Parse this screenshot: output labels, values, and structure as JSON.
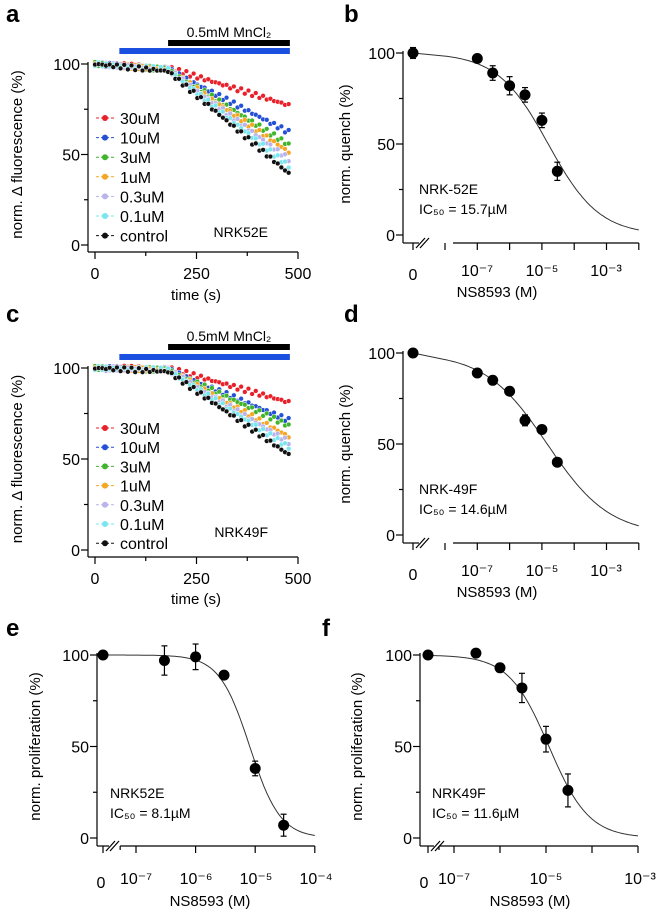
{
  "chart_data": [
    {
      "panel": "a",
      "type": "line",
      "ylabel": "norm. Δ fluorescence (%)",
      "xlabel": "time (s)",
      "xlim": [
        0,
        500
      ],
      "ylim": [
        0,
        100
      ],
      "x_tick_labels": [
        "0",
        "250",
        "500"
      ],
      "y_tick_labels": [
        "0",
        "50",
        "100"
      ],
      "stim_label": "0.5mM MnCl₂",
      "stim_range": [
        180,
        480
      ],
      "light_range": [
        60,
        480
      ],
      "cell_label": "NRK52E",
      "series": [
        {
          "name": "30uM",
          "color": "#e8202a",
          "points": [
            [
              0,
              100
            ],
            [
              180,
              98
            ],
            [
              480,
              77
            ]
          ]
        },
        {
          "name": "10uM",
          "color": "#2450d8",
          "points": [
            [
              0,
              100
            ],
            [
              180,
              97
            ],
            [
              480,
              62
            ]
          ]
        },
        {
          "name": "3uM",
          "color": "#3fb52c",
          "points": [
            [
              0,
              100
            ],
            [
              180,
              97
            ],
            [
              480,
              55
            ]
          ]
        },
        {
          "name": "1uM",
          "color": "#f5a623",
          "points": [
            [
              0,
              100
            ],
            [
              180,
              97
            ],
            [
              480,
              51
            ]
          ]
        },
        {
          "name": "0.3uM",
          "color": "#b9b4ec",
          "points": [
            [
              0,
              100
            ],
            [
              180,
              97
            ],
            [
              480,
              47
            ]
          ]
        },
        {
          "name": "0.1uM",
          "color": "#7ae6ef",
          "points": [
            [
              0,
              100
            ],
            [
              180,
              97
            ],
            [
              480,
              43
            ]
          ]
        },
        {
          "name": "control",
          "color": "#111111",
          "points": [
            [
              0,
              100
            ],
            [
              180,
              96
            ],
            [
              480,
              39
            ]
          ]
        }
      ]
    },
    {
      "panel": "b",
      "type": "scatter",
      "ylabel": "norm. quench (%)",
      "xlabel": "NS8593 (M)",
      "ylim": [
        0,
        100
      ],
      "x_tick_labels": [
        "0",
        "10⁻⁷",
        "10⁻⁵",
        "10⁻³"
      ],
      "y_tick_labels": [
        "0",
        "50",
        "100"
      ],
      "cell_label": "NRK-52E",
      "ic50_label": "IC₅₀ = 15.7µM",
      "fit": {
        "ic50": 1.57e-05,
        "hill": 0.55
      },
      "points": [
        {
          "x": 0,
          "y": 100,
          "err": 3
        },
        {
          "x": 1e-07,
          "y": 97,
          "err": 2
        },
        {
          "x": 3e-07,
          "y": 89,
          "err": 4
        },
        {
          "x": 1e-06,
          "y": 82,
          "err": 5
        },
        {
          "x": 3e-06,
          "y": 77,
          "err": 4
        },
        {
          "x": 1e-05,
          "y": 63,
          "err": 4
        },
        {
          "x": 3e-05,
          "y": 35,
          "err": 5
        }
      ]
    },
    {
      "panel": "c",
      "type": "line",
      "ylabel": "norm. Δ fluorescence (%)",
      "xlabel": "time (s)",
      "xlim": [
        0,
        500
      ],
      "ylim": [
        0,
        100
      ],
      "x_tick_labels": [
        "0",
        "250",
        "500"
      ],
      "y_tick_labels": [
        "0",
        "50",
        "100"
      ],
      "stim_label": "0.5mM MnCl₂",
      "stim_range": [
        180,
        480
      ],
      "light_range": [
        60,
        480
      ],
      "cell_label": "NRK49F",
      "series": [
        {
          "name": "30uM",
          "color": "#e8202a",
          "points": [
            [
              0,
              100
            ],
            [
              180,
              100
            ],
            [
              480,
              81
            ]
          ]
        },
        {
          "name": "10uM",
          "color": "#2450d8",
          "points": [
            [
              0,
              100
            ],
            [
              180,
              99
            ],
            [
              480,
              71
            ]
          ]
        },
        {
          "name": "3uM",
          "color": "#3fb52c",
          "points": [
            [
              0,
              100
            ],
            [
              180,
              99
            ],
            [
              480,
              68
            ]
          ]
        },
        {
          "name": "1uM",
          "color": "#f5a623",
          "points": [
            [
              0,
              100
            ],
            [
              180,
              99
            ],
            [
              480,
              62
            ]
          ]
        },
        {
          "name": "0.3uM",
          "color": "#b9b4ec",
          "points": [
            [
              0,
              100
            ],
            [
              180,
              99
            ],
            [
              480,
              59
            ]
          ]
        },
        {
          "name": "0.1uM",
          "color": "#7ae6ef",
          "points": [
            [
              0,
              100
            ],
            [
              180,
              99
            ],
            [
              480,
              56
            ]
          ]
        },
        {
          "name": "control",
          "color": "#111111",
          "points": [
            [
              0,
              100
            ],
            [
              180,
              98
            ],
            [
              480,
              52
            ]
          ]
        }
      ]
    },
    {
      "panel": "d",
      "type": "scatter",
      "ylabel": "norm. quench (%)",
      "xlabel": "NS8593 (M)",
      "ylim": [
        0,
        100
      ],
      "x_tick_labels": [
        "0",
        "10⁻⁷",
        "10⁻⁵",
        "10⁻³"
      ],
      "y_tick_labels": [
        "0",
        "50",
        "100"
      ],
      "cell_label": "NRK-49F",
      "ic50_label": "IC₅₀ = 14.6µM",
      "fit": {
        "ic50": 1.46e-05,
        "hill": 0.45
      },
      "points": [
        {
          "x": 0,
          "y": 100,
          "err": 1
        },
        {
          "x": 1e-07,
          "y": 89,
          "err": 2
        },
        {
          "x": 3e-07,
          "y": 85,
          "err": 2
        },
        {
          "x": 1e-06,
          "y": 79,
          "err": 2
        },
        {
          "x": 3e-06,
          "y": 63,
          "err": 3
        },
        {
          "x": 1e-05,
          "y": 58,
          "err": 2
        },
        {
          "x": 3e-05,
          "y": 40,
          "err": 2
        }
      ]
    },
    {
      "panel": "e",
      "type": "scatter",
      "ylabel": "norm. proliferation (%)",
      "xlabel": "NS8593 (M)",
      "ylim": [
        0,
        100
      ],
      "x_tick_labels": [
        "0",
        "10⁻⁷",
        "10⁻⁶",
        "10⁻⁵",
        "10⁻⁴"
      ],
      "y_tick_labels": [
        "0",
        "50",
        "100"
      ],
      "cell_label": "NRK52E",
      "ic50_label": "IC₅₀ = 8.1µM",
      "fit": {
        "ic50": 8.1e-06,
        "hill": 1.7
      },
      "points": [
        {
          "x": 0,
          "y": 100,
          "err": 1
        },
        {
          "x": 3e-07,
          "y": 97,
          "err": 8
        },
        {
          "x": 1e-06,
          "y": 99,
          "err": 7
        },
        {
          "x": 3e-06,
          "y": 89,
          "err": 2
        },
        {
          "x": 1e-05,
          "y": 38,
          "err": 4
        },
        {
          "x": 3e-05,
          "y": 7,
          "err": 6
        }
      ]
    },
    {
      "panel": "f",
      "type": "scatter",
      "ylabel": "norm. proliferation (%)",
      "xlabel": "NS8593 (M)",
      "ylim": [
        0,
        100
      ],
      "x_tick_labels": [
        "0",
        "10⁻⁷",
        "10⁻⁵",
        "10⁻³"
      ],
      "y_tick_labels": [
        "0",
        "50",
        "100"
      ],
      "cell_label": "NRK49F",
      "ic50_label": "IC₅₀ = 11.6µM",
      "fit": {
        "ic50": 1.16e-05,
        "hill": 1.0
      },
      "points": [
        {
          "x": 0,
          "y": 100,
          "err": 1
        },
        {
          "x": 3e-07,
          "y": 101,
          "err": 1
        },
        {
          "x": 1e-06,
          "y": 93,
          "err": 2
        },
        {
          "x": 3e-06,
          "y": 82,
          "err": 8
        },
        {
          "x": 1e-05,
          "y": 54,
          "err": 7
        },
        {
          "x": 3e-05,
          "y": 26,
          "err": 9
        }
      ]
    }
  ]
}
